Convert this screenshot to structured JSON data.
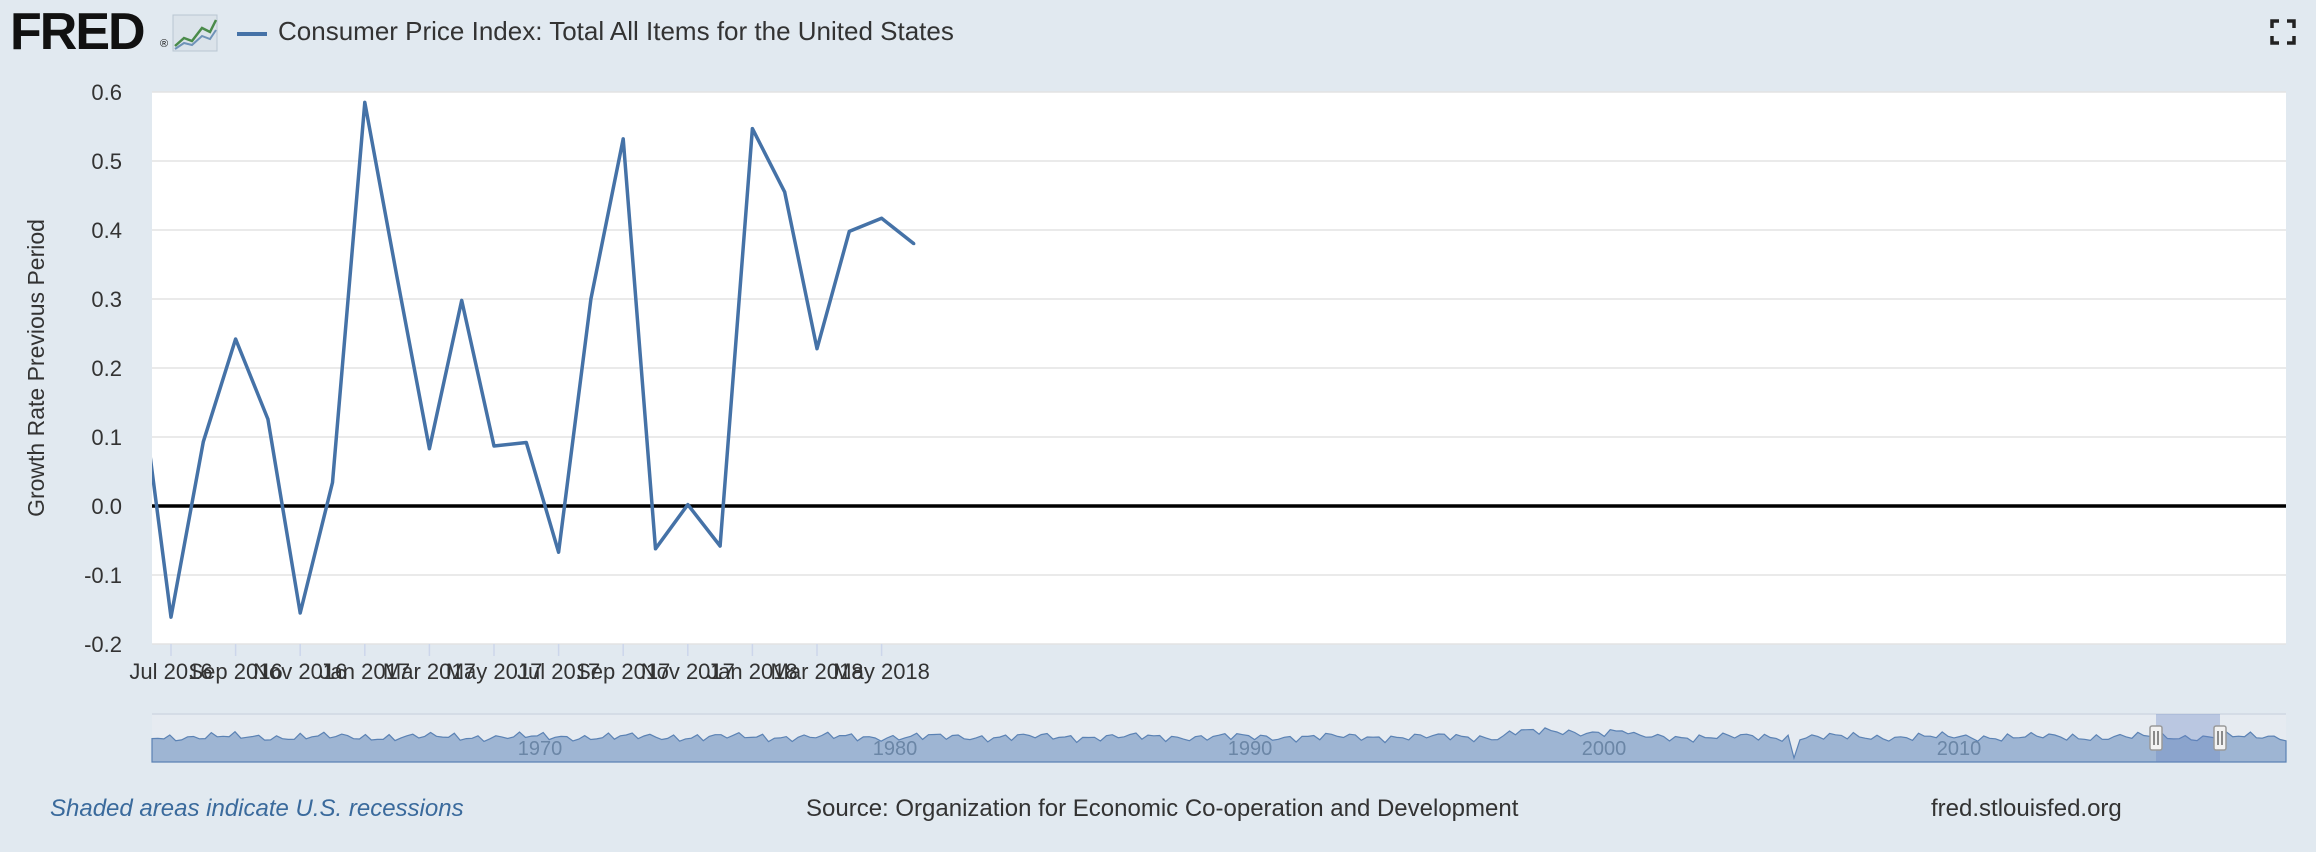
{
  "header": {
    "logo": "FRED",
    "logo_reg": "®",
    "series_title": "Consumer Price Index: Total All Items for the United States"
  },
  "colors": {
    "series": "#4572a7",
    "background": "#e1e9f0",
    "plot_background": "#ffffff",
    "zero_line": "#000000",
    "navigator_fill": "#9eb5d3"
  },
  "icons": {
    "logo_graph": "line-graph-icon",
    "fullscreen": "fullscreen-icon"
  },
  "chart_data": {
    "type": "line",
    "ylabel": "Growth Rate Previous Period",
    "ylim": [
      -0.2,
      0.6
    ],
    "yticks": [
      "0.6",
      "0.5",
      "0.4",
      "0.3",
      "0.2",
      "0.1",
      "0.0",
      "-0.1",
      "-0.2"
    ],
    "xticks": [
      "Jul 2016",
      "Sep 2016",
      "Nov 2016",
      "Jan 2017",
      "Mar 2017",
      "May 2017",
      "Jul 2017",
      "Sep 2017",
      "Nov 2017",
      "Jan 2018",
      "Mar 2018",
      "May 2018"
    ],
    "grid": true,
    "zero_line": true,
    "series": [
      {
        "name": "Consumer Price Index: Total All Items for the United States",
        "x": [
          "Jun 2016",
          "Jul 2016",
          "Aug 2016",
          "Sep 2016",
          "Oct 2016",
          "Nov 2016",
          "Dec 2016",
          "Jan 2017",
          "Feb 2017",
          "Mar 2017",
          "Apr 2017",
          "May 2017",
          "Jun 2017",
          "Jul 2017",
          "Aug 2017",
          "Sep 2017",
          "Oct 2017",
          "Nov 2017",
          "Dec 2017",
          "Jan 2018",
          "Feb 2018",
          "Mar 2018",
          "Apr 2018",
          "May 2018",
          "Jun 2018"
        ],
        "values": [
          0.2,
          -0.161,
          0.093,
          0.242,
          0.126,
          -0.155,
          0.034,
          0.585,
          0.331,
          0.083,
          0.298,
          0.087,
          0.092,
          -0.067,
          0.3,
          0.532,
          -0.062,
          0.002,
          -0.058,
          0.547,
          0.455,
          0.228,
          0.398,
          0.417,
          0.38
        ]
      }
    ],
    "navigator": {
      "labels": [
        "1970",
        "1980",
        "1990",
        "2000",
        "2010"
      ]
    }
  },
  "footer": {
    "recessions_note": "Shaded areas indicate U.S. recessions",
    "source": "Source: Organization for Economic Co-operation and Development",
    "site": "fred.stlouisfed.org"
  }
}
